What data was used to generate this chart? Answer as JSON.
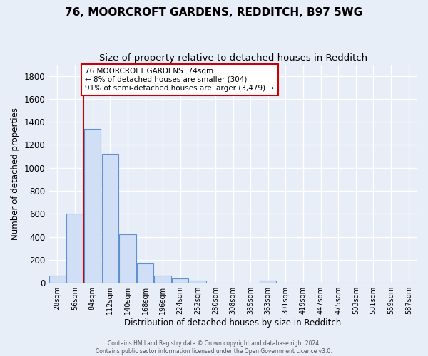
{
  "title": "76, MOORCROFT GARDENS, REDDITCH, B97 5WG",
  "subtitle": "Size of property relative to detached houses in Redditch",
  "xlabel": "Distribution of detached houses by size in Redditch",
  "ylabel": "Number of detached properties",
  "footer_line1": "Contains HM Land Registry data © Crown copyright and database right 2024.",
  "footer_line2": "Contains public sector information licensed under the Open Government Licence v3.0.",
  "bin_labels": [
    "28sqm",
    "56sqm",
    "84sqm",
    "112sqm",
    "140sqm",
    "168sqm",
    "196sqm",
    "224sqm",
    "252sqm",
    "280sqm",
    "308sqm",
    "335sqm",
    "363sqm",
    "391sqm",
    "419sqm",
    "447sqm",
    "475sqm",
    "503sqm",
    "531sqm",
    "559sqm",
    "587sqm"
  ],
  "bar_values": [
    60,
    600,
    1340,
    1120,
    420,
    170,
    65,
    40,
    20,
    0,
    0,
    0,
    20,
    0,
    0,
    0,
    0,
    0,
    0,
    0,
    0
  ],
  "bar_color": "#d0dff5",
  "bar_edge_color": "#6090d0",
  "vline_color": "#cc0000",
  "annotation_text": "76 MOORCROFT GARDENS: 74sqm\n← 8% of detached houses are smaller (304)\n91% of semi-detached houses are larger (3,479) →",
  "annotation_box_color": "#ffffff",
  "annotation_box_edge": "#cc0000",
  "ylim": [
    0,
    1900
  ],
  "background_color": "#e8eef8",
  "grid_color": "#ffffff",
  "title_fontsize": 11,
  "subtitle_fontsize": 9.5
}
